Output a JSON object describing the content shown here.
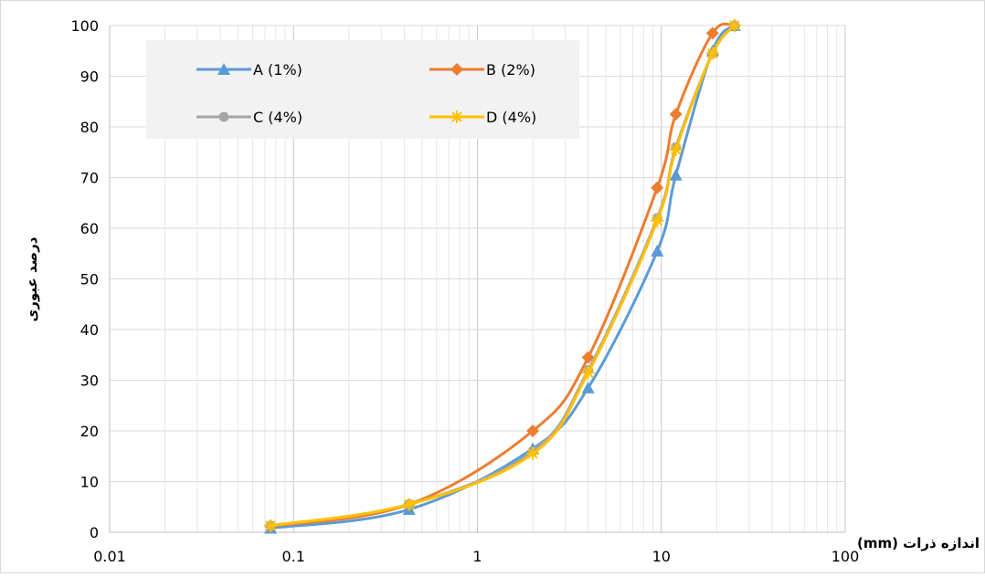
{
  "chart_data": {
    "type": "line",
    "title": "",
    "xlabel": "اندازه ذرات (mm)",
    "ylabel": "درصد عبوری",
    "x_scale": "log",
    "xlim": [
      0.01,
      100
    ],
    "ylim": [
      0,
      100
    ],
    "x_ticks": [
      "0.01",
      "0.1",
      "1",
      "10",
      "100"
    ],
    "y_ticks": [
      "0",
      "10",
      "20",
      "30",
      "40",
      "50",
      "60",
      "70",
      "80",
      "90",
      "100"
    ],
    "grid": true,
    "legend_position": "top-left",
    "series": [
      {
        "name": "A (1%)",
        "color": "#5B9BD5",
        "marker": "triangle",
        "x": [
          0.075,
          0.425,
          2.0,
          4.0,
          9.5,
          12.0,
          19.0,
          25.0
        ],
        "y": [
          0.8,
          4.5,
          16.5,
          28.5,
          55.5,
          70.5,
          95.0,
          100.0
        ]
      },
      {
        "name": "B (2%)",
        "color": "#ED7D31",
        "marker": "diamond",
        "x": [
          0.075,
          0.425,
          2.0,
          4.0,
          9.5,
          12.0,
          19.0,
          25.0
        ],
        "y": [
          1.2,
          5.5,
          20.0,
          34.5,
          68.0,
          82.5,
          98.5,
          100.0
        ]
      },
      {
        "name": "C (4%)",
        "color": "#A5A5A5",
        "marker": "circle",
        "x": [
          0.075,
          0.425,
          2.0,
          4.0,
          9.5,
          12.0,
          19.0,
          25.0
        ],
        "y": [
          1.3,
          5.5,
          16.0,
          32.0,
          62.0,
          76.0,
          94.5,
          100.0
        ]
      },
      {
        "name": "D (4%)",
        "color": "#FFC000",
        "marker": "star",
        "x": [
          0.075,
          0.425,
          2.0,
          4.0,
          9.5,
          12.0,
          19.0,
          25.0
        ],
        "y": [
          1.3,
          5.5,
          15.5,
          31.5,
          61.5,
          75.5,
          94.5,
          100.0
        ]
      }
    ]
  }
}
